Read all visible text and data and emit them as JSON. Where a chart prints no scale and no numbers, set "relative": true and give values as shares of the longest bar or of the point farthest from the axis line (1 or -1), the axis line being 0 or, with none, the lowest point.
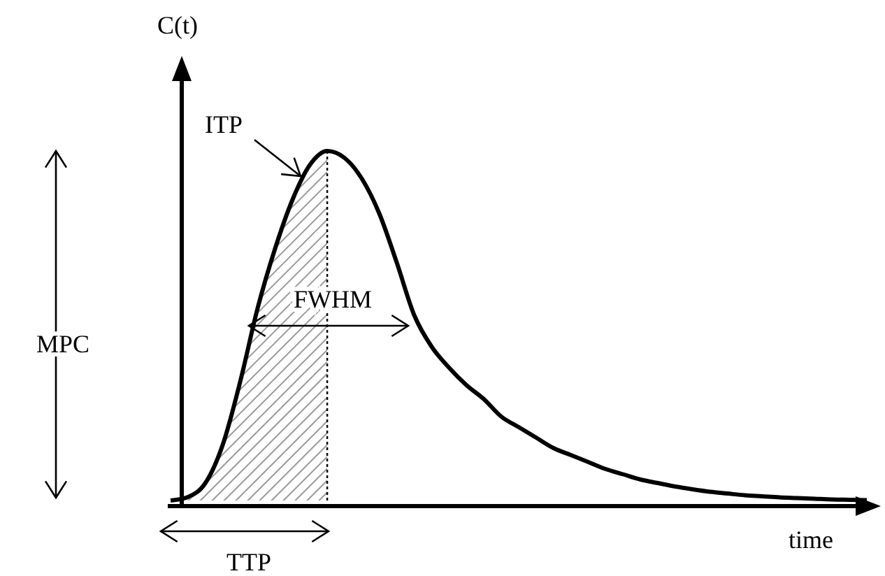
{
  "chart_data": {
    "type": "line",
    "relative": true,
    "xlabel": "time",
    "ylabel": "C(t)",
    "categories": [
      null,
      null,
      null,
      null,
      null,
      null,
      null,
      null,
      null,
      null,
      null,
      null,
      null,
      null,
      null,
      null,
      null,
      null,
      null,
      null,
      null,
      null,
      null,
      null,
      null,
      null,
      null,
      null,
      null,
      null,
      null,
      null,
      null,
      null,
      null,
      null,
      null,
      null,
      null,
      null,
      null
    ],
    "series": [
      {
        "type": "line",
        "color": "#000000",
        "values": [
          0,
          0.01,
          0.05,
          0.16,
          0.34,
          0.55,
          0.72,
          0.86,
          0.96,
          1.0,
          0.98,
          0.92,
          0.82,
          0.68,
          0.53,
          0.44,
          0.38,
          0.33,
          0.29,
          0.24,
          0.21,
          0.18,
          0.15,
          0.13,
          0.11,
          0.09,
          0.075,
          0.06,
          0.05,
          0.04,
          0.032,
          0.025,
          0.02,
          0.015,
          0.012,
          0.009,
          0.007,
          0.005,
          0.003,
          0.002,
          0.001
        ]
      },
      {
        "type": "area",
        "color": "#9a9a9a",
        "values": [
          0,
          0.01,
          0.05,
          0.16,
          0.34,
          0.55,
          0.72,
          0.86,
          0.96,
          1.0,
          null,
          null,
          null,
          null,
          null,
          null,
          null,
          null,
          null,
          null,
          null,
          null,
          null,
          null,
          null,
          null,
          null,
          null,
          null,
          null,
          null,
          null,
          null,
          null,
          null,
          null,
          null,
          null,
          null,
          null,
          null
        ]
      }
    ],
    "annotations": [
      "MPC",
      "TTP",
      "FWHM",
      "ITP"
    ],
    "marker": "none",
    "line_style": "solid"
  }
}
